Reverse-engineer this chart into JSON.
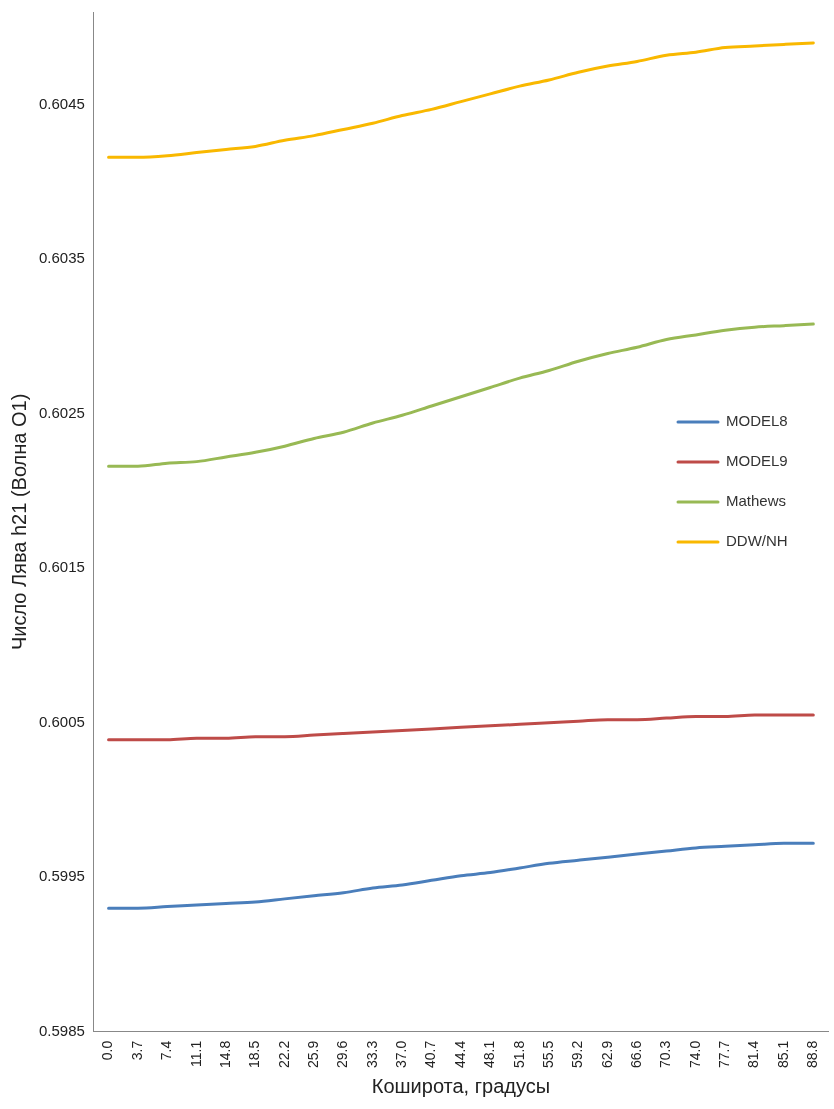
{
  "chart_data": {
    "type": "line",
    "xlabel": "Коширота, градусы",
    "ylabel": "Число Лява h21 (Волна O1)",
    "categories": [
      "0.0",
      "3.7",
      "7.4",
      "11.1",
      "14.8",
      "18.5",
      "22.2",
      "25.9",
      "29.6",
      "33.3",
      "37.0",
      "40.7",
      "44.4",
      "48.1",
      "51.8",
      "55.5",
      "59.2",
      "62.9",
      "66.6",
      "70.3",
      "74.0",
      "77.7",
      "81.4",
      "85.1",
      "88.8"
    ],
    "series": [
      {
        "name": "MODEL8",
        "color": "#4a7ebb",
        "values": [
          0.5993,
          0.5993,
          0.59931,
          0.59932,
          0.59933,
          0.59934,
          0.59936,
          0.59938,
          0.5994,
          0.59943,
          0.59945,
          0.59948,
          0.59951,
          0.59953,
          0.59956,
          0.59959,
          0.59961,
          0.59963,
          0.59965,
          0.59967,
          0.59969,
          0.5997,
          0.59971,
          0.59972,
          0.59972
        ]
      },
      {
        "name": "MODEL9",
        "color": "#be4b48",
        "values": [
          0.60039,
          0.60039,
          0.60039,
          0.6004,
          0.6004,
          0.60041,
          0.60041,
          0.60042,
          0.60043,
          0.60044,
          0.60045,
          0.60046,
          0.60047,
          0.60048,
          0.60049,
          0.6005,
          0.60051,
          0.60052,
          0.60052,
          0.60053,
          0.60054,
          0.60054,
          0.60055,
          0.60055,
          0.60055
        ]
      },
      {
        "name": "Mathews",
        "color": "#98b954",
        "values": [
          0.60216,
          0.60216,
          0.60218,
          0.60219,
          0.60222,
          0.60225,
          0.60229,
          0.60234,
          0.60238,
          0.60244,
          0.60249,
          0.60255,
          0.60261,
          0.60267,
          0.60273,
          0.60278,
          0.60284,
          0.60289,
          0.60293,
          0.60298,
          0.60301,
          0.60304,
          0.60306,
          0.60307,
          0.60308
        ]
      },
      {
        "name": "DDW/NH",
        "color": "#f9b800",
        "values": [
          0.60416,
          0.60416,
          0.60417,
          0.60419,
          0.60421,
          0.60423,
          0.60427,
          0.6043,
          0.60434,
          0.60438,
          0.60443,
          0.60447,
          0.60452,
          0.60457,
          0.60462,
          0.60466,
          0.60471,
          0.60475,
          0.60478,
          0.60482,
          0.60484,
          0.60487,
          0.60488,
          0.60489,
          0.6049
        ]
      }
    ],
    "ylim": [
      0.5985,
      0.6051
    ],
    "yticks": [
      0.5985,
      0.5995,
      0.6005,
      0.6015,
      0.6025,
      0.6035,
      0.6045
    ],
    "grid": false,
    "legend": "right",
    "marker": "none",
    "line_style": "solid"
  }
}
